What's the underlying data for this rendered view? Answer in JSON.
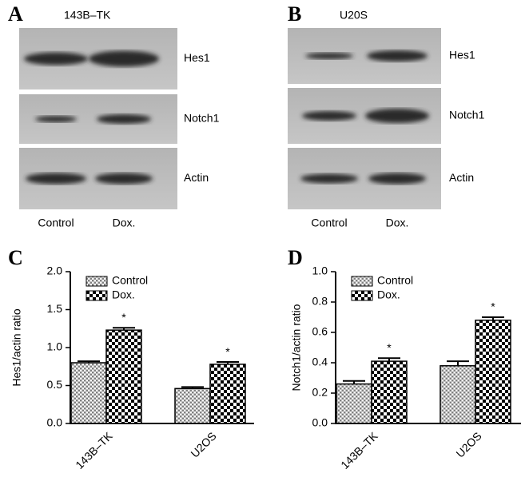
{
  "panels": [
    {
      "letter": "A",
      "title": "143B–TK",
      "bands": [
        "Hes1",
        "Notch1",
        "Actin"
      ],
      "lanes": [
        "Control",
        "Dox."
      ]
    },
    {
      "letter": "B",
      "title": "U20S",
      "bands": [
        "Hes1",
        "Notch1",
        "Actin"
      ],
      "lanes": [
        "Control",
        "Dox."
      ]
    }
  ],
  "chart_data": [
    {
      "type": "bar",
      "letter": "C",
      "ylabel": "Hes1/actin ratio",
      "categories": [
        "143B–TK",
        "U2OS"
      ],
      "series": [
        {
          "name": "Control",
          "color": "#808080",
          "values": [
            0.8,
            0.46
          ],
          "errors": [
            0.02,
            0.02
          ]
        },
        {
          "name": "Dox.",
          "color": "#000000",
          "values": [
            1.23,
            0.78
          ],
          "errors": [
            0.03,
            0.03
          ],
          "annotations": [
            "*",
            "*"
          ]
        }
      ],
      "ylim": [
        0,
        2
      ],
      "yticks": [
        {
          "value": 0,
          "label": "0.0"
        },
        {
          "value": 0.5,
          "label": "0.5"
        },
        {
          "value": 1,
          "label": "1.0"
        },
        {
          "value": 1.5,
          "label": "1.5"
        },
        {
          "value": 2,
          "label": "2.0"
        }
      ]
    },
    {
      "type": "bar",
      "letter": "D",
      "ylabel": "Notch1/actin ratio",
      "categories": [
        "143B–TK",
        "U2OS"
      ],
      "series": [
        {
          "name": "Control",
          "color": "#808080",
          "values": [
            0.26,
            0.38
          ],
          "errors": [
            0.02,
            0.03
          ]
        },
        {
          "name": "Dox.",
          "color": "#000000",
          "values": [
            0.41,
            0.68
          ],
          "errors": [
            0.02,
            0.02
          ],
          "annotations": [
            "*",
            "*"
          ]
        }
      ],
      "ylim": [
        0,
        1
      ],
      "yticks": [
        {
          "value": 0,
          "label": "0.0"
        },
        {
          "value": 0.2,
          "label": "0.2"
        },
        {
          "value": 0.4,
          "label": "0.4"
        },
        {
          "value": 0.6,
          "label": "0.6"
        },
        {
          "value": 0.8,
          "label": "0.8"
        },
        {
          "value": 1,
          "label": "1.0"
        }
      ]
    }
  ]
}
